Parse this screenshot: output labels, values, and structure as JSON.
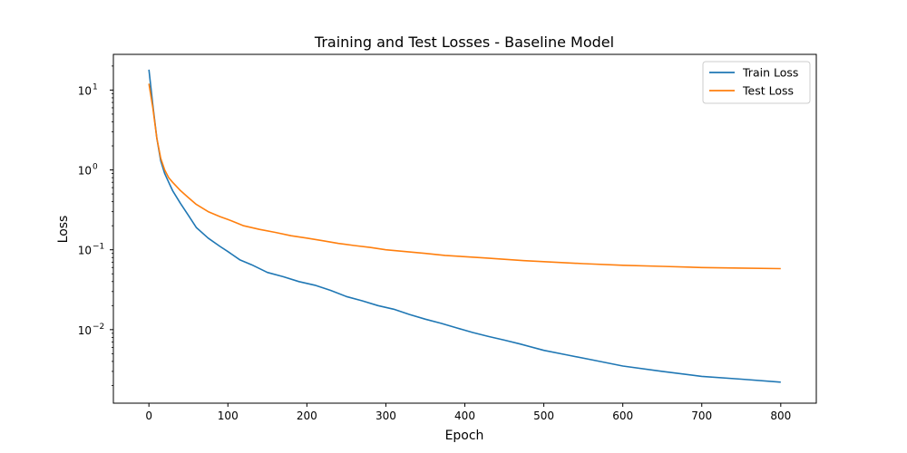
{
  "chart_data": {
    "type": "line",
    "title": "Training and Test Losses - Baseline Model",
    "xlabel": "Epoch",
    "ylabel": "Loss",
    "yscale": "log",
    "xlim": [
      -45,
      845
    ],
    "ylim": [
      0.0012,
      28
    ],
    "grid": false,
    "legend_position": "top-right",
    "x_ticks": [
      {
        "value": 0,
        "label": "0"
      },
      {
        "value": 100,
        "label": "100"
      },
      {
        "value": 200,
        "label": "200"
      },
      {
        "value": 300,
        "label": "300"
      },
      {
        "value": 400,
        "label": "400"
      },
      {
        "value": 500,
        "label": "500"
      },
      {
        "value": 600,
        "label": "600"
      },
      {
        "value": 700,
        "label": "700"
      },
      {
        "value": 800,
        "label": "800"
      }
    ],
    "y_ticks": [
      {
        "value": 10,
        "base": "10",
        "exp": "1"
      },
      {
        "value": 1,
        "base": "10",
        "exp": "0"
      },
      {
        "value": 0.1,
        "base": "10",
        "exp": "−1"
      },
      {
        "value": 0.01,
        "base": "10",
        "exp": "−2"
      }
    ],
    "series": [
      {
        "name": "Train Loss",
        "color": "#1f77b4",
        "x": [
          0,
          5,
          10,
          15,
          20,
          25,
          30,
          40,
          50,
          60,
          75,
          90,
          100,
          115,
          130,
          150,
          170,
          190,
          210,
          230,
          250,
          270,
          290,
          310,
          330,
          350,
          370,
          390,
          410,
          430,
          450,
          470,
          500,
          530,
          560,
          600,
          650,
          700,
          750,
          800
        ],
        "y": [
          18,
          6.5,
          2.5,
          1.3,
          0.9,
          0.7,
          0.55,
          0.38,
          0.27,
          0.19,
          0.14,
          0.11,
          0.095,
          0.075,
          0.065,
          0.052,
          0.046,
          0.04,
          0.036,
          0.031,
          0.026,
          0.023,
          0.02,
          0.018,
          0.0155,
          0.0135,
          0.012,
          0.0105,
          0.0092,
          0.0082,
          0.0074,
          0.0066,
          0.0055,
          0.0048,
          0.0042,
          0.0035,
          0.003,
          0.0026,
          0.0024,
          0.0022
        ]
      },
      {
        "name": "Test Loss",
        "color": "#ff7f0e",
        "x": [
          0,
          5,
          10,
          15,
          20,
          25,
          30,
          40,
          50,
          60,
          75,
          90,
          100,
          120,
          140,
          160,
          180,
          200,
          220,
          240,
          260,
          280,
          300,
          325,
          350,
          375,
          400,
          425,
          450,
          475,
          500,
          550,
          600,
          650,
          700,
          750,
          800
        ],
        "y": [
          12,
          6,
          2.5,
          1.4,
          1.0,
          0.8,
          0.7,
          0.55,
          0.45,
          0.37,
          0.3,
          0.26,
          0.24,
          0.2,
          0.18,
          0.165,
          0.15,
          0.14,
          0.13,
          0.12,
          0.113,
          0.107,
          0.1,
          0.095,
          0.09,
          0.085,
          0.082,
          0.079,
          0.076,
          0.073,
          0.071,
          0.067,
          0.064,
          0.062,
          0.06,
          0.059,
          0.058
        ]
      }
    ]
  }
}
